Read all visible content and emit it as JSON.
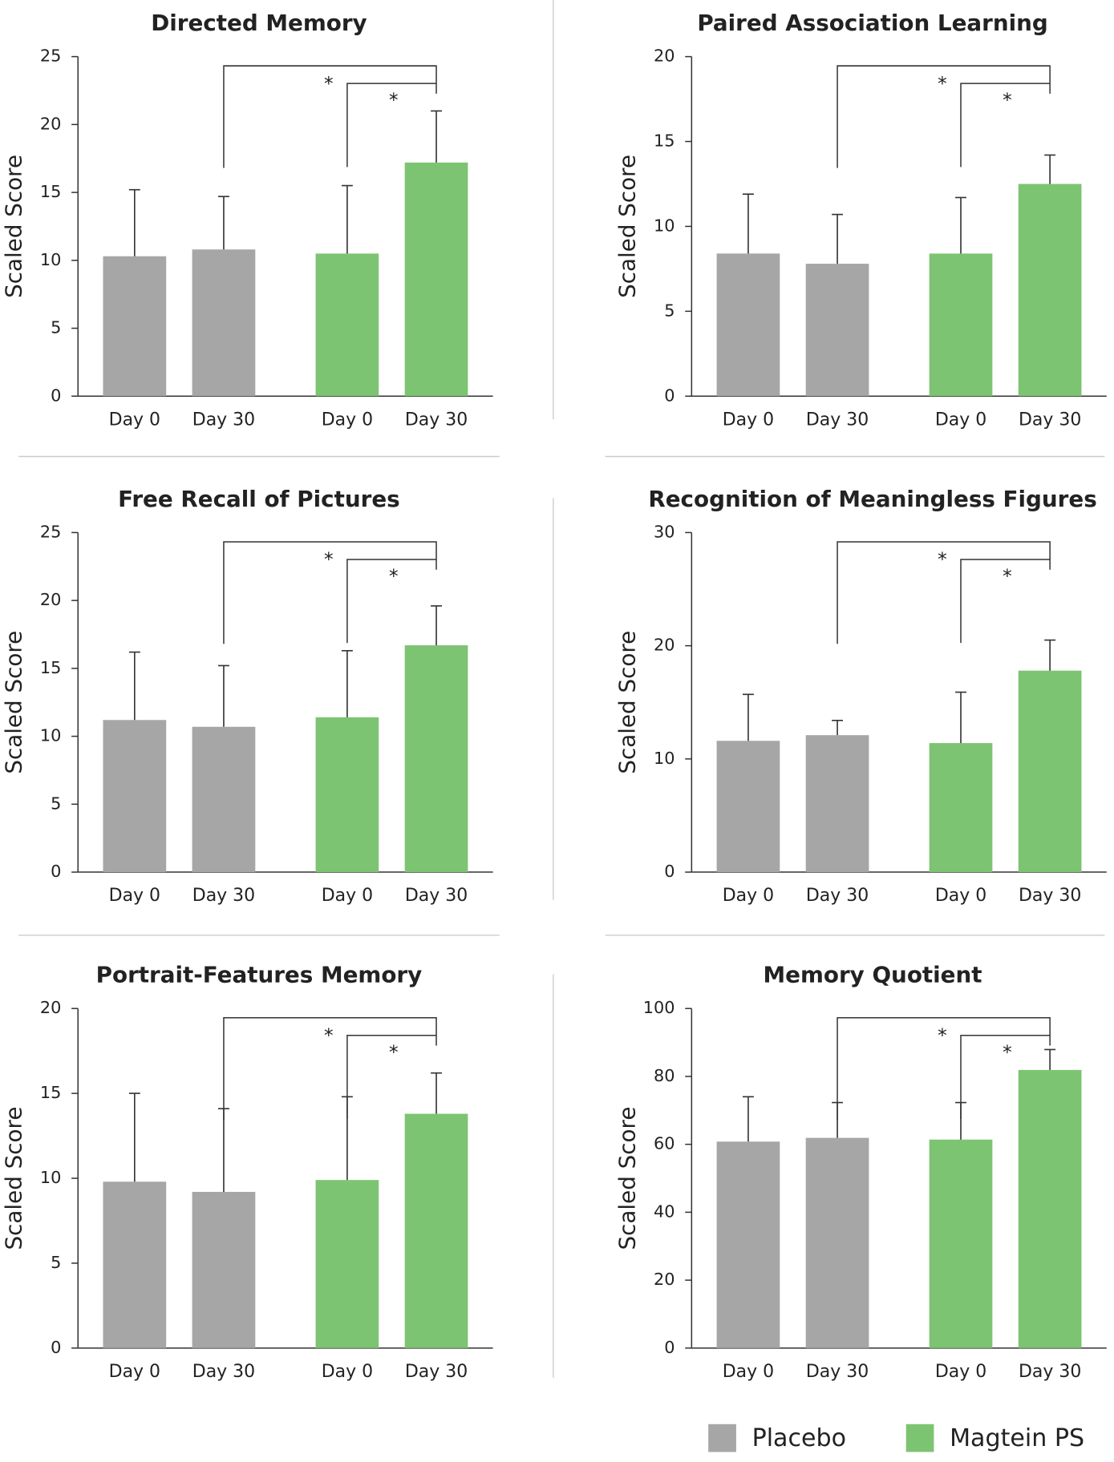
{
  "chart_data": [
    {
      "type": "bar",
      "title": "Directed Memory",
      "y_label": "Scaled Score",
      "categories": [
        "Day 0",
        "Day 30"
      ],
      "ylim": [
        0,
        25
      ],
      "yticks": [
        0,
        5,
        10,
        15,
        20,
        25
      ],
      "annotations": [
        "*",
        "*"
      ],
      "series": [
        {
          "name": "Placebo",
          "color": "#a6a6a6",
          "values": [
            10.3,
            10.8
          ],
          "errors": [
            4.9,
            3.9
          ]
        },
        {
          "name": "Magtein PS",
          "color": "#7dc472",
          "values": [
            10.5,
            17.2
          ],
          "errors": [
            5.0,
            3.8
          ]
        }
      ]
    },
    {
      "type": "bar",
      "title": "Paired Association Learning",
      "y_label": "Scaled Score",
      "categories": [
        "Day 0",
        "Day 30"
      ],
      "ylim": [
        0,
        20
      ],
      "yticks": [
        0,
        5,
        10,
        15,
        20
      ],
      "annotations": [
        "*",
        "*"
      ],
      "series": [
        {
          "name": "Placebo",
          "color": "#a6a6a6",
          "values": [
            8.4,
            7.8
          ],
          "errors": [
            3.5,
            2.9
          ]
        },
        {
          "name": "Magtein PS",
          "color": "#7dc472",
          "values": [
            8.4,
            12.5
          ],
          "errors": [
            3.3,
            1.7
          ]
        }
      ]
    },
    {
      "type": "bar",
      "title": "Free Recall of Pictures",
      "y_label": "Scaled Score",
      "categories": [
        "Day 0",
        "Day 30"
      ],
      "ylim": [
        0,
        25
      ],
      "yticks": [
        0,
        5,
        10,
        15,
        20,
        25
      ],
      "annotations": [
        "*",
        "*"
      ],
      "series": [
        {
          "name": "Placebo",
          "color": "#a6a6a6",
          "values": [
            11.2,
            10.7
          ],
          "errors": [
            5.0,
            4.5
          ]
        },
        {
          "name": "Magtein PS",
          "color": "#7dc472",
          "values": [
            11.4,
            16.7
          ],
          "errors": [
            4.9,
            2.9
          ]
        }
      ]
    },
    {
      "type": "bar",
      "title": "Recognition of Meaningless Figures",
      "y_label": "Scaled Score",
      "categories": [
        "Day 0",
        "Day 30"
      ],
      "ylim": [
        0,
        30
      ],
      "yticks": [
        0,
        10,
        20,
        30
      ],
      "annotations": [
        "*",
        "*"
      ],
      "series": [
        {
          "name": "Placebo",
          "color": "#a6a6a6",
          "values": [
            11.6,
            12.1
          ],
          "errors": [
            4.1,
            1.3
          ]
        },
        {
          "name": "Magtein PS",
          "color": "#7dc472",
          "values": [
            11.4,
            17.8
          ],
          "errors": [
            4.5,
            2.7
          ]
        }
      ]
    },
    {
      "type": "bar",
      "title": "Portrait-Features Memory",
      "y_label": "Scaled Score",
      "categories": [
        "Day 0",
        "Day 30"
      ],
      "ylim": [
        0,
        20
      ],
      "yticks": [
        0,
        5,
        10,
        15,
        20
      ],
      "annotations": [
        "*",
        "*"
      ],
      "series": [
        {
          "name": "Placebo",
          "color": "#a6a6a6",
          "values": [
            9.8,
            9.2
          ],
          "errors": [
            5.2,
            4.9
          ]
        },
        {
          "name": "Magtein PS",
          "color": "#7dc472",
          "values": [
            9.9,
            13.8
          ],
          "errors": [
            4.9,
            2.4
          ]
        }
      ]
    },
    {
      "type": "bar",
      "title": "Memory Quotient",
      "y_label": "Scaled Score",
      "categories": [
        "Day 0",
        "Day 30"
      ],
      "ylim": [
        0,
        100
      ],
      "yticks": [
        0,
        20,
        40,
        60,
        80,
        100
      ],
      "annotations": [
        "*",
        "*"
      ],
      "series": [
        {
          "name": "Placebo",
          "color": "#a6a6a6",
          "values": [
            60.8,
            61.9
          ],
          "errors": [
            13.2,
            10.4
          ]
        },
        {
          "name": "Magtein PS",
          "color": "#7dc472",
          "values": [
            61.4,
            81.9
          ],
          "errors": [
            10.9,
            6.0
          ]
        }
      ]
    }
  ]
}
